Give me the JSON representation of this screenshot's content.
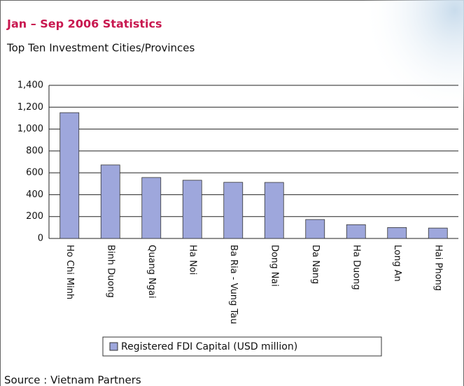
{
  "chart_data": {
    "type": "bar",
    "title": "Jan – Sep 2006 Statistics",
    "subtitle": "Top Ten Investment Cities/Provinces",
    "categories": [
      "Ho Chi Minh",
      "Binh Duong",
      "Quang Ngai",
      "Ha Noi",
      "Ba Ria - Vung Tau",
      "Dong Nai",
      "Da Nang",
      "Ha Duong",
      "Long An",
      "Hai Phong"
    ],
    "series": [
      {
        "name": "Registered FDI Capital (USD million)",
        "color": "#9ea7dc",
        "values": [
          1150,
          672,
          557,
          532,
          513,
          512,
          173,
          126,
          100,
          95
        ]
      }
    ],
    "ylim": [
      0,
      1400
    ],
    "yticks": [
      0,
      200,
      400,
      600,
      800,
      {
        "value": 1000,
        "label": "1,000"
      },
      {
        "value": 1200,
        "label": "1,200"
      },
      {
        "value": 1400,
        "label": "1,400"
      }
    ],
    "grid": true,
    "source": "Source : Vietnam Partners"
  }
}
